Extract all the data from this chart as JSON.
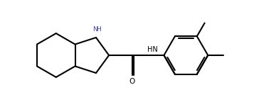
{
  "background_color": "#ffffff",
  "line_color": "#000000",
  "nh_color": "#4040aa",
  "bond_width": 1.5,
  "figsize": [
    3.57,
    1.51
  ],
  "dpi": 100,
  "xlim": [
    -0.3,
    6.5
  ],
  "ylim": [
    0.5,
    3.5
  ]
}
